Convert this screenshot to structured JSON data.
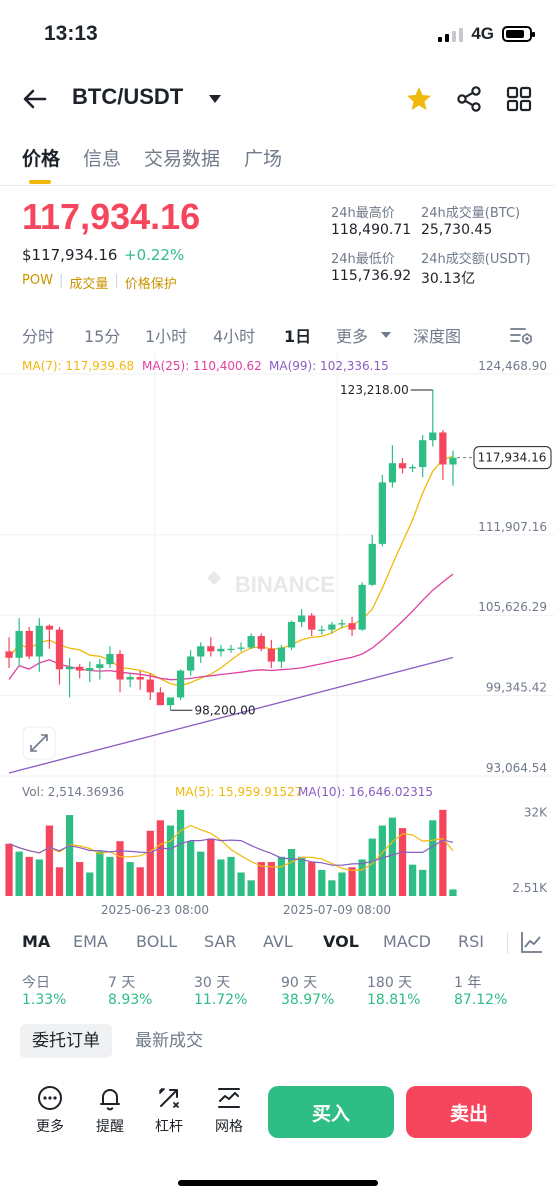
{
  "status_bar": {
    "time": "13:13",
    "network": "4G"
  },
  "header": {
    "pair": "BTC/USDT"
  },
  "tabs": [
    {
      "label": "价格"
    },
    {
      "label": "信息"
    },
    {
      "label": "交易数据"
    },
    {
      "label": "广场"
    }
  ],
  "price": {
    "last": "117,934.16",
    "usd": "$117,934.16",
    "change": "+0.22%",
    "badges": [
      "POW",
      "成交量",
      "价格保护"
    ]
  },
  "stats": {
    "high_label": "24h最高价",
    "high_value": "118,490.71",
    "vol_btc_label": "24h成交量(BTC)",
    "vol_btc_value": "25,730.45",
    "low_label": "24h最低价",
    "low_value": "115,736.92",
    "vol_usdt_label": "24h成交额(USDT)",
    "vol_usdt_value": "30.13亿"
  },
  "intervals": {
    "items": [
      {
        "label": "分时"
      },
      {
        "label": "15分"
      },
      {
        "label": "1小时"
      },
      {
        "label": "4小时"
      },
      {
        "label": "1日"
      },
      {
        "label": "更多"
      },
      {
        "label": "深度图"
      }
    ]
  },
  "chart": {
    "ma_legend": [
      {
        "label": "MA(7): 117,939.68",
        "color": "#f0b90b"
      },
      {
        "label": "MA(25): 110,400.62",
        "color": "#e040a0"
      },
      {
        "label": "MA(99): 102,336.15",
        "color": "#8a5cc2"
      }
    ],
    "watermark": "BINANCE",
    "high_marker": "123,218.00",
    "low_marker": "98,200.00",
    "current_price_tag": "117,934.16",
    "vol_legend": [
      {
        "label": "Vol: 2,514.36936",
        "color": "#707a8a"
      },
      {
        "label": "MA(5): 15,959.91527",
        "color": "#f0b90b"
      },
      {
        "label": "MA(10): 16,646.02315",
        "color": "#8a5cc2"
      }
    ],
    "vol_ticks": [
      "32K",
      "2.51K"
    ],
    "x_ticks": [
      "2025-06-23 08:00",
      "2025-07-09 08:00"
    ],
    "colors": {
      "up": "#2ebd85",
      "down": "#f6465d"
    }
  },
  "chart_data": {
    "type": "candlestick",
    "title": "",
    "y_axis_ticks": [
      "124,468.90",
      "111,907.16",
      "105,626.29",
      "99,345.42",
      "93,064.54"
    ],
    "ylim": [
      93064.54,
      124468.9
    ],
    "candles": [
      {
        "o": 102800,
        "h": 103900,
        "l": 101500,
        "c": 102300
      },
      {
        "o": 102300,
        "h": 105400,
        "l": 101600,
        "c": 104400
      },
      {
        "o": 104400,
        "h": 104700,
        "l": 102200,
        "c": 102400
      },
      {
        "o": 102400,
        "h": 105400,
        "l": 101200,
        "c": 104800
      },
      {
        "o": 104800,
        "h": 104900,
        "l": 103000,
        "c": 104500
      },
      {
        "o": 104500,
        "h": 104700,
        "l": 100200,
        "c": 101400
      },
      {
        "o": 101400,
        "h": 102300,
        "l": 99200,
        "c": 101600
      },
      {
        "o": 101600,
        "h": 101800,
        "l": 100700,
        "c": 101300
      },
      {
        "o": 101300,
        "h": 102000,
        "l": 100400,
        "c": 101500
      },
      {
        "o": 101500,
        "h": 102200,
        "l": 100600,
        "c": 101800
      },
      {
        "o": 101800,
        "h": 103200,
        "l": 101500,
        "c": 102600
      },
      {
        "o": 102600,
        "h": 102900,
        "l": 99600,
        "c": 100600
      },
      {
        "o": 100600,
        "h": 101100,
        "l": 100000,
        "c": 100800
      },
      {
        "o": 100800,
        "h": 101300,
        "l": 99800,
        "c": 100600
      },
      {
        "o": 100600,
        "h": 101100,
        "l": 99000,
        "c": 99600
      },
      {
        "o": 99600,
        "h": 100000,
        "l": 98600,
        "c": 98600
      },
      {
        "o": 98600,
        "h": 99000,
        "l": 98200,
        "c": 99200
      },
      {
        "o": 99200,
        "h": 101400,
        "l": 99000,
        "c": 101300
      },
      {
        "o": 101300,
        "h": 102900,
        "l": 100900,
        "c": 102400
      },
      {
        "o": 102400,
        "h": 103500,
        "l": 101900,
        "c": 103200
      },
      {
        "o": 103200,
        "h": 103900,
        "l": 102400,
        "c": 102800
      },
      {
        "o": 102800,
        "h": 103300,
        "l": 102400,
        "c": 103000
      },
      {
        "o": 103000,
        "h": 103300,
        "l": 102700,
        "c": 103000
      },
      {
        "o": 103000,
        "h": 103500,
        "l": 102800,
        "c": 103100
      },
      {
        "o": 103100,
        "h": 104200,
        "l": 103000,
        "c": 104000
      },
      {
        "o": 104000,
        "h": 104200,
        "l": 102800,
        "c": 103000
      },
      {
        "o": 103000,
        "h": 103700,
        "l": 101500,
        "c": 102000
      },
      {
        "o": 102000,
        "h": 103300,
        "l": 101500,
        "c": 103100
      },
      {
        "o": 103100,
        "h": 105200,
        "l": 102900,
        "c": 105100
      },
      {
        "o": 105100,
        "h": 106100,
        "l": 104700,
        "c": 105600
      },
      {
        "o": 105600,
        "h": 105800,
        "l": 104000,
        "c": 104500
      },
      {
        "o": 104500,
        "h": 104800,
        "l": 104100,
        "c": 104500
      },
      {
        "o": 104500,
        "h": 105100,
        "l": 104200,
        "c": 104900
      },
      {
        "o": 104900,
        "h": 105300,
        "l": 104600,
        "c": 105000
      },
      {
        "o": 105000,
        "h": 105500,
        "l": 104000,
        "c": 104500
      },
      {
        "o": 104500,
        "h": 108200,
        "l": 104400,
        "c": 108000
      },
      {
        "o": 108000,
        "h": 111900,
        "l": 107900,
        "c": 111200
      },
      {
        "o": 111200,
        "h": 116600,
        "l": 111000,
        "c": 116000
      },
      {
        "o": 116000,
        "h": 118900,
        "l": 115600,
        "c": 117500
      },
      {
        "o": 117500,
        "h": 117900,
        "l": 116700,
        "c": 117100
      },
      {
        "o": 117100,
        "h": 117400,
        "l": 116800,
        "c": 117200
      },
      {
        "o": 117200,
        "h": 119700,
        "l": 116400,
        "c": 119300
      },
      {
        "o": 119300,
        "h": 123218,
        "l": 118800,
        "c": 119900
      },
      {
        "o": 119900,
        "h": 120100,
        "l": 116200,
        "c": 117400
      },
      {
        "o": 117400,
        "h": 118490.71,
        "l": 115736.92,
        "c": 117934.16
      }
    ],
    "volume_ylim": [
      0,
      36000
    ],
    "volumes": [
      20000,
      17000,
      15000,
      14000,
      27000,
      11000,
      31000,
      13000,
      9000,
      17000,
      15000,
      21000,
      13000,
      11000,
      25000,
      29000,
      27000,
      33000,
      21000,
      17000,
      22000,
      14000,
      15000,
      9000,
      6000,
      13000,
      13000,
      15000,
      18000,
      15000,
      13000,
      10000,
      6000,
      9000,
      11000,
      14000,
      22000,
      27000,
      30000,
      26000,
      12000,
      10000,
      29000,
      33000,
      2514
    ]
  },
  "indicators": {
    "items": [
      {
        "label": "MA"
      },
      {
        "label": "EMA"
      },
      {
        "label": "BOLL"
      },
      {
        "label": "SAR"
      },
      {
        "label": "AVL"
      },
      {
        "label": "VOL"
      },
      {
        "label": "MACD"
      },
      {
        "label": "RSI"
      }
    ]
  },
  "performance": [
    {
      "period": "今日",
      "value": "1.33%"
    },
    {
      "period": "7 天",
      "value": "8.93%"
    },
    {
      "period": "30 天",
      "value": "11.72%"
    },
    {
      "period": "90 天",
      "value": "38.97%"
    },
    {
      "period": "180 天",
      "value": "18.81%"
    },
    {
      "period": "1 年",
      "value": "87.12%"
    }
  ],
  "order_tabs": {
    "open_orders": "委托订单",
    "latest_trades": "最新成交"
  },
  "bottom": {
    "more": "更多",
    "alert": "提醒",
    "leverage": "杠杆",
    "grid": "网格",
    "buy": "买入",
    "sell": "卖出"
  }
}
